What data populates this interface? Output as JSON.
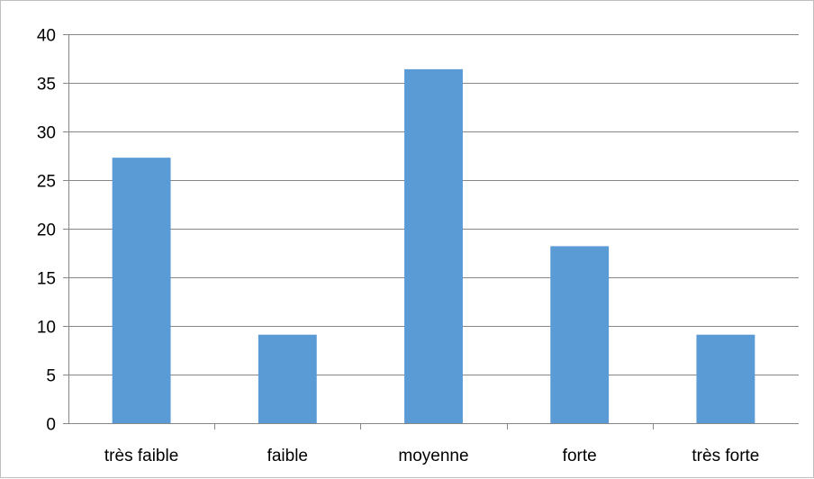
{
  "chart_data": {
    "type": "bar",
    "title": "",
    "xlabel": "",
    "ylabel": "",
    "categories": [
      "très faible",
      "faible",
      "moyenne",
      "forte",
      "très forte"
    ],
    "values": [
      27.3,
      9.1,
      36.4,
      18.2,
      9.1
    ],
    "ylim": [
      0,
      40
    ],
    "yticks": [
      0,
      5,
      10,
      15,
      20,
      25,
      30,
      35,
      40
    ],
    "grid": true,
    "legend": "none",
    "colors": {
      "bar": "#5b9bd5",
      "grid": "#868686",
      "axis": "#868686"
    }
  }
}
